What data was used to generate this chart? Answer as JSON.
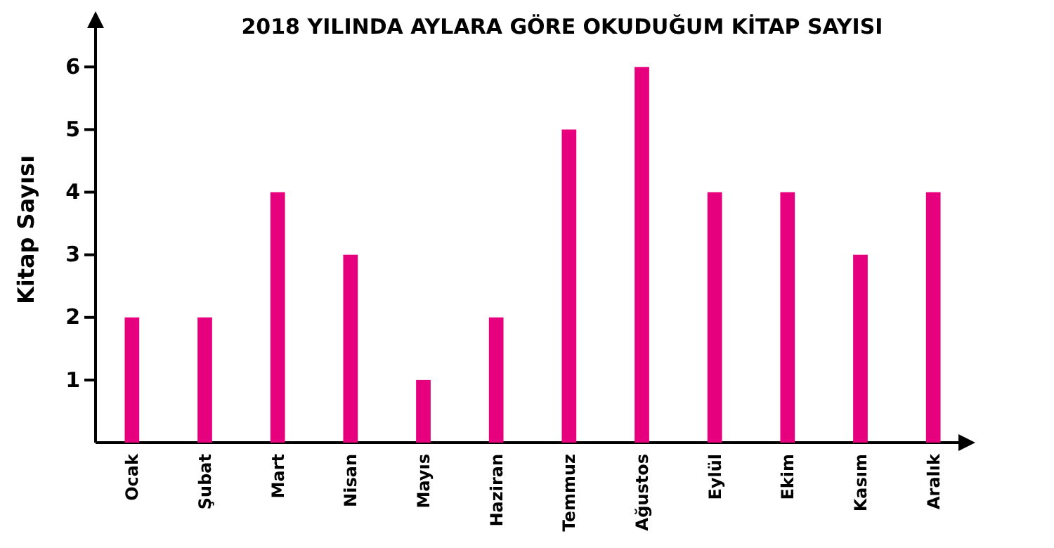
{
  "chart_data": {
    "type": "bar",
    "title": "2018 YILINDA AYLARA GÖRE OKUDUĞUM KİTAP SAYISI",
    "ylabel": "Kitap Sayısı",
    "categories": [
      "Ocak",
      "Şubat",
      "Mart",
      "Nisan",
      "Mayıs",
      "Haziran",
      "Temmuz",
      "Ağustos",
      "Eylül",
      "Ekim",
      "Kasım",
      "Aralık"
    ],
    "values": [
      2,
      2,
      4,
      3,
      1,
      2,
      5,
      6,
      4,
      4,
      3,
      4
    ],
    "color": "#e6007e",
    "ylim": [
      0,
      6.8
    ],
    "yticks": [
      1,
      2,
      3,
      4,
      5,
      6
    ],
    "grid": false
  }
}
